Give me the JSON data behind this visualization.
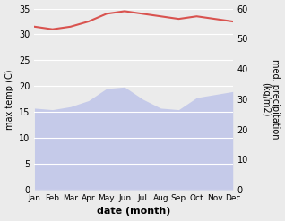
{
  "months": [
    "Jan",
    "Feb",
    "Mar",
    "Apr",
    "May",
    "Jun",
    "Jul",
    "Aug",
    "Sep",
    "Oct",
    "Nov",
    "Dec"
  ],
  "x": [
    0,
    1,
    2,
    3,
    4,
    5,
    6,
    7,
    8,
    9,
    10,
    11
  ],
  "max_temp": [
    31.5,
    31.0,
    31.5,
    32.5,
    34.0,
    34.5,
    34.0,
    33.5,
    33.0,
    33.5,
    33.0,
    32.5
  ],
  "precipitation": [
    27.0,
    26.5,
    27.5,
    29.5,
    33.5,
    34.0,
    30.0,
    27.0,
    26.5,
    30.5,
    31.5,
    32.5
  ],
  "temp_color": "#d9534f",
  "precip_fill_color": "#c5cae9",
  "temp_ylim": [
    0,
    35
  ],
  "precip_ylim": [
    0,
    60
  ],
  "temp_yticks": [
    0,
    5,
    10,
    15,
    20,
    25,
    30,
    35
  ],
  "precip_yticks": [
    0,
    10,
    20,
    30,
    40,
    50,
    60
  ],
  "xlabel": "date (month)",
  "ylabel_left": "max temp (C)",
  "ylabel_right": "med. precipitation\n(kg/m2)",
  "background_color": "#ebebeb",
  "fig_bg": "#ebebeb"
}
